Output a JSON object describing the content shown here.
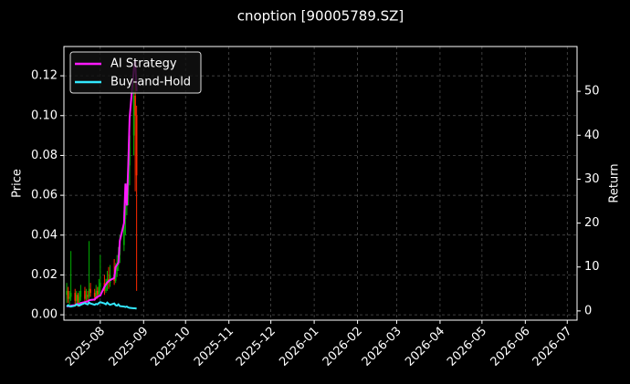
{
  "chart_data": {
    "type": "candlestick_returns",
    "title": "cnoption [90005789.SZ]",
    "ylabel": "Price",
    "y2label": "Return",
    "x": [
      "2025-07-08",
      "2025-07-09",
      "2025-07-10",
      "2025-07-11",
      "2025-07-14",
      "2025-07-15",
      "2025-07-16",
      "2025-07-17",
      "2025-07-18",
      "2025-07-21",
      "2025-07-22",
      "2025-07-23",
      "2025-07-24",
      "2025-07-25",
      "2025-07-28",
      "2025-07-29",
      "2025-07-30",
      "2025-07-31",
      "2025-08-01",
      "2025-08-04",
      "2025-08-05",
      "2025-08-06",
      "2025-08-07",
      "2025-08-08",
      "2025-08-11",
      "2025-08-12",
      "2025-08-13",
      "2025-08-14",
      "2025-08-15",
      "2025-08-18",
      "2025-08-19",
      "2025-08-20",
      "2025-08-21",
      "2025-08-22",
      "2025-08-25",
      "2025-08-26",
      "2025-08-27"
    ],
    "open": [
      0.01,
      0.012,
      0.008,
      0.009,
      0.011,
      0.007,
      0.01,
      0.006,
      0.009,
      0.012,
      0.008,
      0.01,
      0.009,
      0.013,
      0.011,
      0.009,
      0.012,
      0.01,
      0.014,
      0.016,
      0.012,
      0.015,
      0.018,
      0.016,
      0.02,
      0.017,
      0.022,
      0.025,
      0.03,
      0.035,
      0.048,
      0.055,
      0.06,
      0.075,
      0.09,
      0.11,
      0.1
    ],
    "high": [
      0.016,
      0.014,
      0.012,
      0.032,
      0.013,
      0.012,
      0.011,
      0.012,
      0.015,
      0.014,
      0.013,
      0.012,
      0.037,
      0.016,
      0.013,
      0.015,
      0.014,
      0.018,
      0.03,
      0.02,
      0.018,
      0.022,
      0.024,
      0.025,
      0.028,
      0.026,
      0.03,
      0.034,
      0.04,
      0.052,
      0.06,
      0.066,
      0.08,
      0.098,
      0.125,
      0.118,
      0.105
    ],
    "low": [
      0.006,
      0.006,
      0.005,
      0.007,
      0.005,
      0.005,
      0.004,
      0.005,
      0.007,
      0.006,
      0.007,
      0.006,
      0.008,
      0.009,
      0.007,
      0.008,
      0.008,
      0.009,
      0.011,
      0.01,
      0.011,
      0.012,
      0.013,
      0.014,
      0.015,
      0.016,
      0.019,
      0.022,
      0.026,
      0.032,
      0.04,
      0.05,
      0.055,
      0.065,
      0.08,
      0.062,
      0.012
    ],
    "close": [
      0.012,
      0.008,
      0.009,
      0.011,
      0.007,
      0.01,
      0.006,
      0.009,
      0.012,
      0.008,
      0.01,
      0.009,
      0.013,
      0.011,
      0.009,
      0.012,
      0.01,
      0.014,
      0.016,
      0.012,
      0.015,
      0.018,
      0.016,
      0.02,
      0.017,
      0.022,
      0.025,
      0.03,
      0.035,
      0.048,
      0.055,
      0.06,
      0.075,
      0.09,
      0.11,
      0.1,
      0.07
    ],
    "up_color": "#00b000",
    "down_color": "#ff2a00",
    "series": [
      {
        "name": "AI Strategy",
        "color": "#ff1aff",
        "axis": "y2",
        "values": [
          1.0,
          1.1,
          1.0,
          1.2,
          1.3,
          1.5,
          1.6,
          1.5,
          1.8,
          2.0,
          2.1,
          2.2,
          2.4,
          2.5,
          2.6,
          3.0,
          3.2,
          3.4,
          3.5,
          5.5,
          6.0,
          6.5,
          6.8,
          7.0,
          7.5,
          10.0,
          10.5,
          11.0,
          16,
          20,
          29,
          24,
          33,
          44,
          55,
          57,
          50
        ]
      },
      {
        "name": "Buy-and-Hold",
        "color": "#33e8ff",
        "axis": "y2",
        "values": [
          1.0,
          1.3,
          1.1,
          1.0,
          1.2,
          1.5,
          1.3,
          1.2,
          1.4,
          1.8,
          1.6,
          1.5,
          1.9,
          1.7,
          1.4,
          1.6,
          1.5,
          1.8,
          2.0,
          1.7,
          1.5,
          1.9,
          1.6,
          1.4,
          1.7,
          1.3,
          1.2,
          1.5,
          1.1,
          1.0,
          0.9,
          1.0,
          0.8,
          0.7,
          0.6,
          0.6,
          0.5
        ]
      }
    ],
    "xlim": [
      "2025-07-06",
      "2026-07-08"
    ],
    "xticks": [
      "2025-08",
      "2025-09",
      "2025-10",
      "2025-11",
      "2025-12",
      "2026-01",
      "2026-02",
      "2026-03",
      "2026-04",
      "2026-05",
      "2026-06",
      "2026-07"
    ],
    "ylim": [
      -0.0027,
      0.1347
    ],
    "yticks": [
      {
        "value": 0,
        "label": "0.00"
      },
      {
        "value": 0.02,
        "label": "0.02"
      },
      {
        "value": 0.04,
        "label": "0.04"
      },
      {
        "value": 0.06,
        "label": "0.06"
      },
      {
        "value": 0.08,
        "label": "0.08"
      },
      {
        "value": 0.1,
        "label": "0.10"
      },
      {
        "value": 0.12,
        "label": "0.12"
      }
    ],
    "y2lim": [
      -2.1,
      60.2
    ],
    "y2ticks": [
      0,
      10,
      20,
      30,
      40,
      50
    ],
    "grid": true,
    "legend": "upper left"
  }
}
